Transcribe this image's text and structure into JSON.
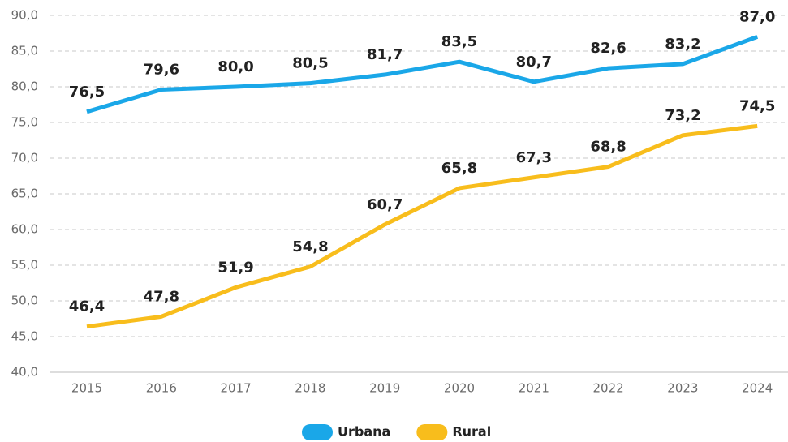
{
  "chart_data": {
    "type": "line",
    "categories": [
      "2015",
      "2016",
      "2017",
      "2018",
      "2019",
      "2020",
      "2021",
      "2022",
      "2023",
      "2024"
    ],
    "series": [
      {
        "name": "Urbana",
        "color": "#1aa7e8",
        "values": [
          76.5,
          79.6,
          80.0,
          80.5,
          81.7,
          83.5,
          80.7,
          82.6,
          83.2,
          87.0
        ],
        "value_labels": [
          "76,5",
          "79,6",
          "80,0",
          "80,5",
          "81,7",
          "83,5",
          "80,7",
          "82,6",
          "83,2",
          "87,0"
        ]
      },
      {
        "name": "Rural",
        "color": "#f8bd1c",
        "values": [
          46.4,
          47.8,
          51.9,
          54.8,
          60.7,
          65.8,
          67.3,
          68.8,
          73.2,
          74.5
        ],
        "value_labels": [
          "46,4",
          "47,8",
          "51,9",
          "54,8",
          "60,7",
          "65,8",
          "67,3",
          "68,8",
          "73,2",
          "74,5"
        ]
      }
    ],
    "ylim": [
      40,
      90
    ],
    "yticks": [
      {
        "value": 40,
        "label": "40,0"
      },
      {
        "value": 45,
        "label": "45,0"
      },
      {
        "value": 50,
        "label": "50,0"
      },
      {
        "value": 55,
        "label": "55,0"
      },
      {
        "value": 60,
        "label": "60,0"
      },
      {
        "value": 65,
        "label": "65,0"
      },
      {
        "value": 70,
        "label": "70,0"
      },
      {
        "value": 75,
        "label": "75,0"
      },
      {
        "value": 80,
        "label": "80,0"
      },
      {
        "value": 85,
        "label": "85,0"
      },
      {
        "value": 90,
        "label": "90,0"
      }
    ],
    "grid": true,
    "legend": "bottom"
  }
}
